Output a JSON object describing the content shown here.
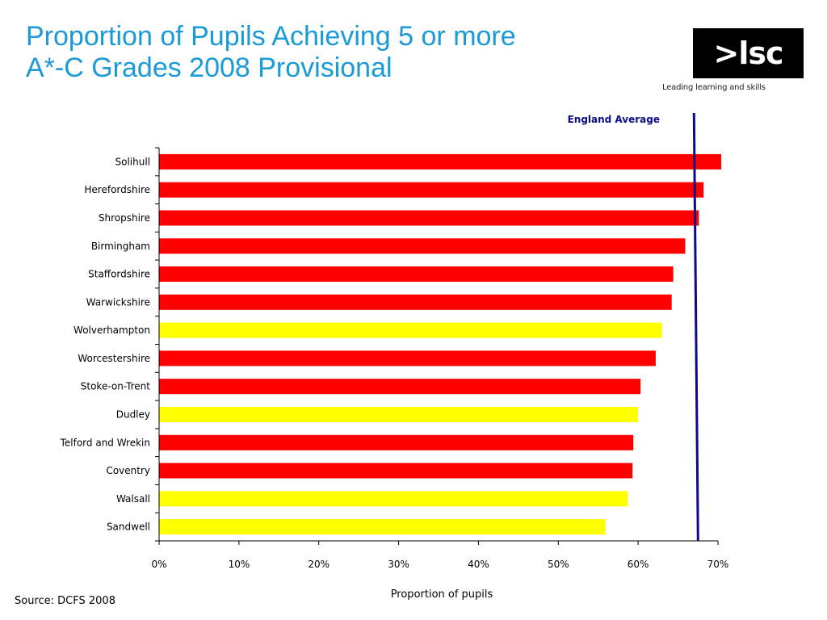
{
  "title_lines": [
    "Proportion of Pupils Achieving 5 or more",
    "A*-C Grades 2008 Provisional"
  ],
  "logo": {
    "text": ">lsc",
    "tagline": "Leading learning and skills"
  },
  "source": "Source: DCFS 2008",
  "colors": {
    "title": "#1a9bd7",
    "red": "#ff0000",
    "yellow": "#ffff00",
    "average_line": "#0b0b8a"
  },
  "chart_data": {
    "type": "bar",
    "orientation": "horizontal",
    "categories": [
      "Solihull",
      "Herefordshire",
      "Shropshire",
      "Birmingham",
      "Staffordshire",
      "Warwickshire",
      "Wolverhampton",
      "Worcestershire",
      "Stoke-on-Trent",
      "Dudley",
      "Telford and Wrekin",
      "Coventry",
      "Walsall",
      "Sandwell"
    ],
    "values": [
      70.4,
      68.2,
      67.6,
      65.9,
      64.4,
      64.2,
      63.0,
      62.2,
      60.3,
      60.0,
      59.4,
      59.3,
      58.7,
      55.9
    ],
    "bar_colors": [
      "red",
      "red",
      "red",
      "red",
      "red",
      "red",
      "yellow",
      "red",
      "red",
      "yellow",
      "red",
      "red",
      "yellow",
      "yellow"
    ],
    "xlabel": "Proportion of pupils",
    "ylabel": "",
    "xlim": [
      0,
      70
    ],
    "xticks": [
      0,
      10,
      20,
      30,
      40,
      50,
      60,
      70
    ],
    "xtick_labels": [
      "0%",
      "10%",
      "20%",
      "30%",
      "40%",
      "50%",
      "60%",
      "70%"
    ],
    "reference_line": {
      "label": "England Average",
      "value": 67.3
    },
    "grid": false,
    "legend": "none"
  }
}
